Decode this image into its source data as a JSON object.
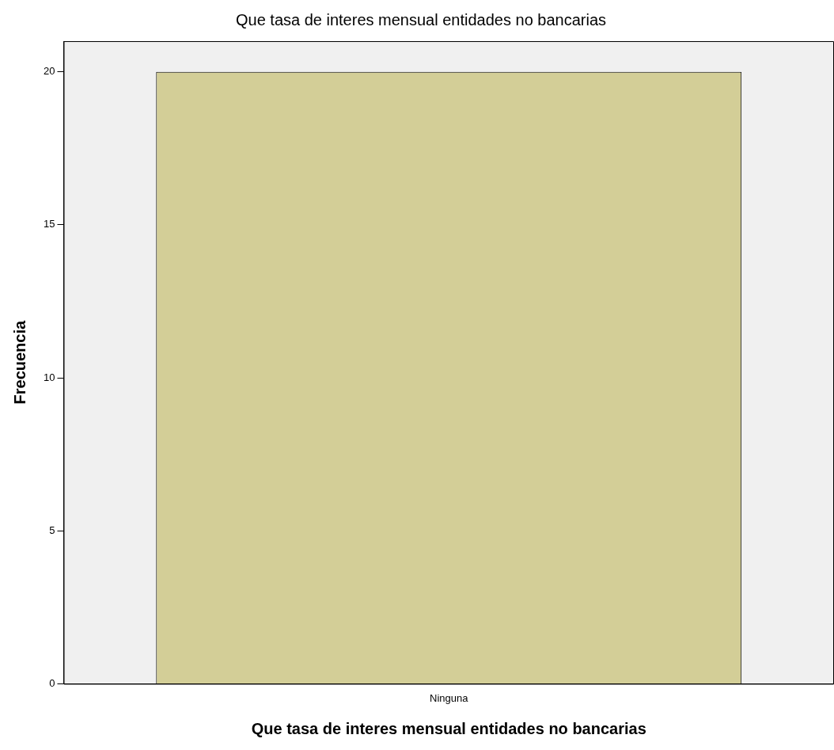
{
  "chart_data": {
    "type": "bar",
    "title": "Que tasa de interes mensual entidades no bancarias",
    "xlabel": "Que tasa de interes mensual entidades no bancarias",
    "ylabel": "Frecuencia",
    "categories": [
      "Ninguna"
    ],
    "values": [
      20
    ],
    "color": "#d3ce97",
    "ylim": [
      0,
      21
    ],
    "yticks": [
      0,
      5,
      10,
      15,
      20
    ],
    "grid": false,
    "legend": false
  }
}
